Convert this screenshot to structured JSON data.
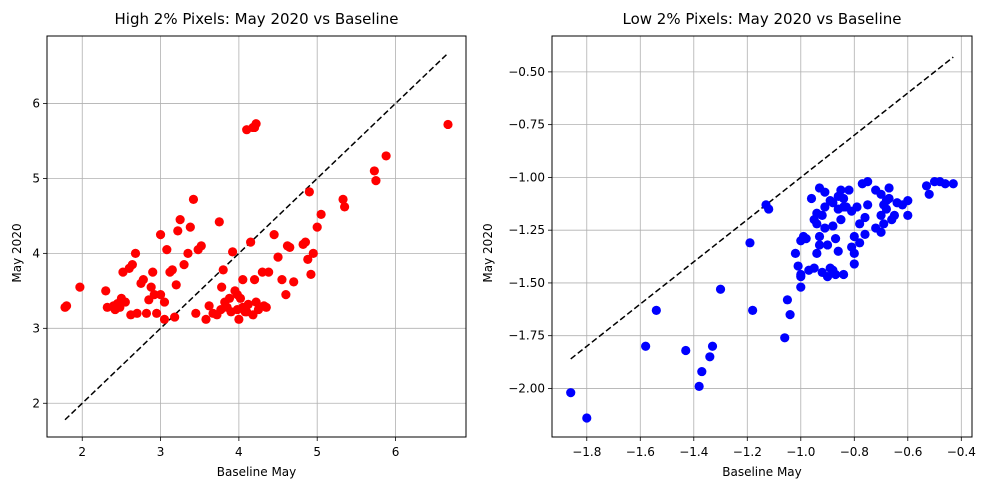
{
  "chart_data": [
    {
      "type": "scatter",
      "title": "High 2% Pixels: May 2020 vs Baseline",
      "xlabel": "Baseline May",
      "ylabel": "May 2020",
      "xlim": [
        1.55,
        6.9
      ],
      "ylim": [
        1.55,
        6.9
      ],
      "xticks": [
        "2",
        "3",
        "4",
        "5",
        "6"
      ],
      "yticks": [
        "2",
        "3",
        "4",
        "5",
        "6"
      ],
      "grid": true,
      "marker_color": "#ff0000",
      "reference_line": {
        "style": "dashed",
        "color": "#000000",
        "x": [
          1.78,
          6.65
        ],
        "y": [
          1.78,
          6.65
        ]
      },
      "x": [
        1.78,
        1.8,
        1.97,
        2.3,
        2.32,
        2.4,
        2.42,
        2.45,
        2.48,
        2.5,
        2.52,
        2.55,
        2.6,
        2.62,
        2.64,
        2.68,
        2.7,
        2.75,
        2.78,
        2.82,
        2.85,
        2.88,
        2.9,
        2.92,
        2.95,
        3.0,
        3.0,
        3.05,
        3.05,
        3.08,
        3.12,
        3.15,
        3.18,
        3.2,
        3.22,
        3.25,
        3.3,
        3.35,
        3.38,
        3.42,
        3.45,
        3.48,
        3.52,
        3.58,
        3.62,
        3.67,
        3.72,
        3.75,
        3.77,
        3.78,
        3.8,
        3.82,
        3.85,
        3.88,
        3.9,
        3.92,
        3.95,
        3.98,
        3.98,
        4.0,
        4.02,
        4.05,
        4.05,
        4.08,
        4.1,
        4.12,
        4.15,
        4.18,
        4.2,
        4.22,
        4.25,
        4.3,
        4.32,
        4.35,
        4.38,
        4.45,
        4.5,
        4.55,
        4.6,
        4.62,
        4.65,
        4.7,
        4.82,
        4.85,
        4.88,
        4.9,
        4.92,
        4.95,
        5.0,
        5.05,
        5.33,
        5.35,
        5.73,
        5.75,
        5.88,
        6.67,
        4.1,
        4.18,
        4.2,
        4.22
      ],
      "y": [
        3.28,
        3.3,
        3.55,
        3.5,
        3.28,
        3.3,
        3.25,
        3.33,
        3.28,
        3.4,
        3.75,
        3.35,
        3.8,
        3.18,
        3.85,
        4.0,
        3.2,
        3.6,
        3.65,
        3.2,
        3.38,
        3.55,
        3.75,
        3.45,
        3.2,
        4.25,
        3.45,
        3.12,
        3.35,
        4.05,
        3.75,
        3.78,
        3.15,
        3.58,
        4.3,
        4.45,
        3.85,
        4.0,
        4.35,
        4.72,
        3.2,
        4.05,
        4.1,
        3.12,
        3.3,
        3.2,
        3.18,
        4.42,
        3.25,
        3.55,
        3.78,
        3.35,
        3.28,
        3.4,
        3.22,
        4.02,
        3.5,
        3.25,
        3.45,
        3.12,
        3.4,
        3.65,
        3.28,
        3.22,
        3.22,
        3.32,
        4.15,
        3.18,
        3.65,
        3.35,
        3.25,
        3.75,
        3.3,
        3.28,
        3.75,
        4.25,
        3.95,
        3.65,
        3.45,
        4.1,
        4.08,
        3.62,
        4.12,
        4.15,
        3.92,
        4.82,
        3.72,
        4.0,
        4.35,
        4.52,
        4.72,
        4.62,
        5.1,
        4.97,
        5.3,
        5.72,
        5.65,
        5.68,
        5.68,
        5.73
      ]
    },
    {
      "type": "scatter",
      "title": "Low 2% Pixels: May 2020 vs Baseline",
      "xlabel": "Baseline May",
      "ylabel": "May 2020",
      "xlim": [
        -1.93,
        -0.36
      ],
      "ylim": [
        -2.23,
        -0.33
      ],
      "xticks": [
        "−1.8",
        "−1.6",
        "−1.4",
        "−1.2",
        "−1.0",
        "−0.8",
        "−0.6",
        "−0.4"
      ],
      "yticks": [
        "−2.00",
        "−1.75",
        "−1.50",
        "−1.25",
        "−1.00",
        "−0.75",
        "−0.50"
      ],
      "grid": true,
      "marker_color": "#0000ff",
      "reference_line": {
        "style": "dashed",
        "color": "#000000",
        "x": [
          -1.86,
          -0.43
        ],
        "y": [
          -1.86,
          -0.43
        ]
      },
      "x": [
        -1.86,
        -1.8,
        -1.58,
        -1.54,
        -1.43,
        -1.38,
        -1.37,
        -1.34,
        -1.33,
        -1.3,
        -1.19,
        -1.18,
        -1.13,
        -1.12,
        -1.06,
        -1.05,
        -1.04,
        -1.02,
        -1.01,
        -1.0,
        -1.0,
        -1.0,
        -0.99,
        -0.98,
        -0.96,
        -0.95,
        -0.95,
        -0.94,
        -0.94,
        -0.93,
        -0.93,
        -0.92,
        -0.92,
        -0.91,
        -0.91,
        -0.9,
        -0.9,
        -0.89,
        -0.88,
        -0.88,
        -0.87,
        -0.87,
        -0.86,
        -0.86,
        -0.85,
        -0.85,
        -0.84,
        -0.83,
        -0.82,
        -0.81,
        -0.8,
        -0.8,
        -0.79,
        -0.78,
        -0.77,
        -0.76,
        -0.75,
        -0.75,
        -0.72,
        -0.7,
        -0.7,
        -0.7,
        -0.69,
        -0.69,
        -0.68,
        -0.67,
        -0.67,
        -0.66,
        -0.65,
        -0.64,
        -0.62,
        -0.6,
        -0.6,
        -0.53,
        -0.52,
        -0.5,
        -0.48,
        -0.46,
        -0.43,
        -0.94,
        -0.91,
        -0.89,
        -0.86,
        -0.84,
        -0.81,
        -0.78,
        -0.76,
        -1.0,
        -0.97,
        -0.93,
        -0.88,
        -0.84,
        -0.8,
        -0.72,
        -0.68
      ],
      "y": [
        -2.02,
        -2.14,
        -1.8,
        -1.63,
        -1.82,
        -1.99,
        -1.92,
        -1.85,
        -1.8,
        -1.53,
        -1.31,
        -1.63,
        -1.13,
        -1.15,
        -1.76,
        -1.58,
        -1.65,
        -1.36,
        -1.42,
        -1.47,
        -1.3,
        -1.52,
        -1.28,
        -1.29,
        -1.1,
        -1.43,
        -1.2,
        -1.22,
        -1.36,
        -1.05,
        -1.28,
        -1.18,
        -1.45,
        -1.24,
        -1.07,
        -1.47,
        -1.32,
        -1.43,
        -1.12,
        -1.23,
        -1.29,
        -1.46,
        -1.15,
        -1.35,
        -1.06,
        -1.2,
        -1.1,
        -1.14,
        -1.06,
        -1.33,
        -1.28,
        -1.36,
        -1.14,
        -1.22,
        -1.03,
        -1.27,
        -1.02,
        -1.13,
        -1.06,
        -1.08,
        -1.18,
        -1.26,
        -1.13,
        -1.22,
        -1.15,
        -1.05,
        -1.1,
        -1.2,
        -1.18,
        -1.12,
        -1.13,
        -1.11,
        -1.18,
        -1.04,
        -1.08,
        -1.02,
        -1.02,
        -1.03,
        -1.03,
        -1.17,
        -1.14,
        -1.11,
        -1.09,
        -1.14,
        -1.16,
        -1.31,
        -1.19,
        -1.46,
        -1.44,
        -1.32,
        -1.44,
        -1.46,
        -1.41,
        -1.24,
        -1.11
      ]
    }
  ]
}
